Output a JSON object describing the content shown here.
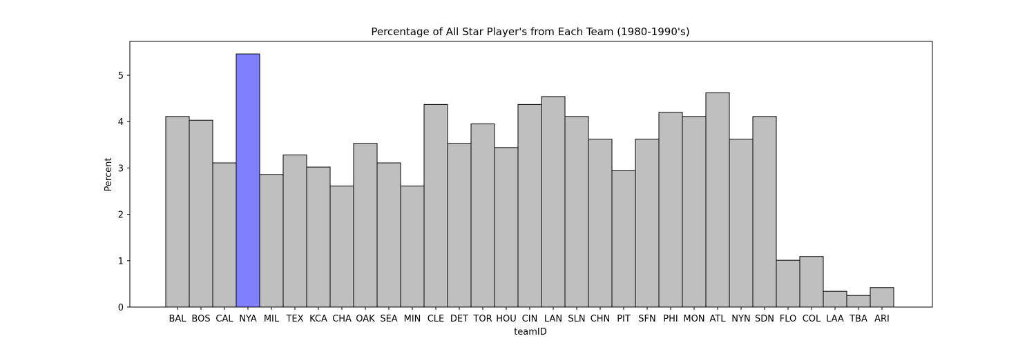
{
  "chart_data": {
    "type": "bar",
    "title": "Percentage of All Star Player's from Each Team (1980-1990's)",
    "xlabel": "teamID",
    "ylabel": "Percent",
    "ylim": [
      0,
      5.73
    ],
    "yticks": [
      0,
      1,
      2,
      3,
      4,
      5
    ],
    "grid": false,
    "legend": "none",
    "colors": {
      "default": "#bfbfbf",
      "highlight": "#8080ff",
      "edge": "#000000"
    },
    "highlight": [
      "NYA"
    ],
    "categories": [
      "BAL",
      "BOS",
      "CAL",
      "NYA",
      "MIL",
      "TEX",
      "KCA",
      "CHA",
      "OAK",
      "SEA",
      "MIN",
      "CLE",
      "DET",
      "TOR",
      "HOU",
      "CIN",
      "LAN",
      "SLN",
      "CHN",
      "PIT",
      "SFN",
      "PHI",
      "MON",
      "ATL",
      "NYN",
      "SDN",
      "FLO",
      "COL",
      "LAA",
      "TBA",
      "ARI"
    ],
    "values": [
      4.11,
      4.03,
      3.11,
      5.46,
      2.86,
      3.28,
      3.02,
      2.61,
      3.53,
      3.11,
      2.61,
      4.37,
      3.53,
      3.95,
      3.44,
      4.37,
      4.54,
      4.11,
      3.62,
      2.94,
      3.62,
      4.2,
      4.11,
      4.62,
      3.62,
      4.11,
      1.01,
      1.09,
      0.34,
      0.25,
      0.42
    ]
  }
}
